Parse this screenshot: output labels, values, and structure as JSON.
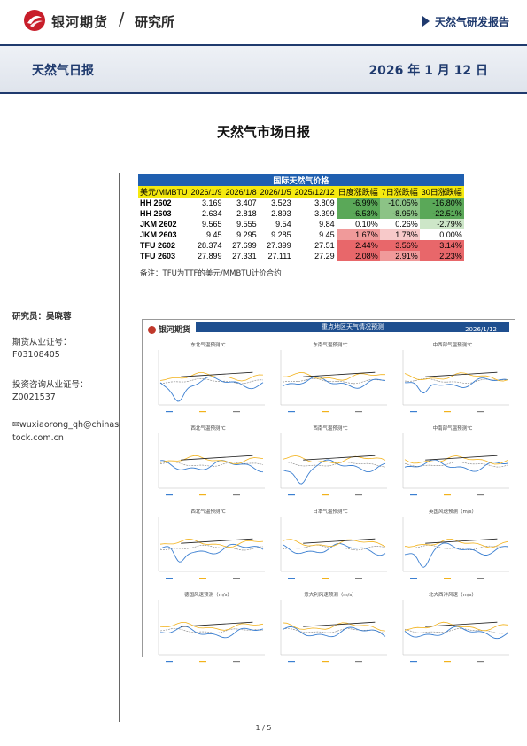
{
  "header": {
    "company": "银河期货",
    "separator": "/",
    "division": "研究所",
    "report_type": "天然气研发报告"
  },
  "banner": {
    "title": "天然气日报",
    "date": "2026 年 1 月 12 日"
  },
  "document_title": "天然气市场日报",
  "sidebar": {
    "analyst_label": "研究员：吴晓蓉",
    "cert_label": "期货从业证号：",
    "cert_number": "F03108405",
    "advisor_label": "投资咨询从业证号：",
    "advisor_number": "Z0021537",
    "email_line1": "wuxiaorong_qh@chinas",
    "email_line2": "tock.com.cn"
  },
  "price_table": {
    "caption": "国际天然气价格",
    "headers": [
      "美元/MMBTU",
      "2026/1/9",
      "2026/1/8",
      "2026/1/5",
      "2025/12/12",
      "日度涨跌幅",
      "7日涨跌幅",
      "30日涨跌幅"
    ],
    "rows": [
      {
        "name": "HH 2602",
        "v1": "3.169",
        "v2": "3.407",
        "v3": "3.523",
        "v4": "3.809",
        "d": "-6.99%",
        "w": "-10.05%",
        "m": "-16.80%",
        "dc": "green-dark",
        "wc": "green-mid",
        "mc": "green-dark"
      },
      {
        "name": "HH 2603",
        "v1": "2.634",
        "v2": "2.818",
        "v3": "2.893",
        "v4": "3.399",
        "d": "-6.53%",
        "w": "-8.95%",
        "m": "-22.51%",
        "dc": "green-dark",
        "wc": "green-mid",
        "mc": "green-dark"
      },
      {
        "name": "JKM 2602",
        "v1": "9.565",
        "v2": "9.555",
        "v3": "9.54",
        "v4": "9.84",
        "d": "0.10%",
        "w": "0.26%",
        "m": "-2.79%",
        "dc": "",
        "wc": "",
        "mc": "green-light"
      },
      {
        "name": "JKM 2603",
        "v1": "9.45",
        "v2": "9.295",
        "v3": "9.285",
        "v4": "9.45",
        "d": "1.67%",
        "w": "1.78%",
        "m": "0.00%",
        "dc": "red-mid",
        "wc": "red-light",
        "mc": ""
      },
      {
        "name": "TFU 2602",
        "v1": "28.374",
        "v2": "27.699",
        "v3": "27.399",
        "v4": "27.51",
        "d": "2.44%",
        "w": "3.56%",
        "m": "3.14%",
        "dc": "red-dark",
        "wc": "red-dark",
        "mc": "red-dark"
      },
      {
        "name": "TFU 2603",
        "v1": "27.899",
        "v2": "27.331",
        "v3": "27.111",
        "v4": "27.29",
        "d": "2.08%",
        "w": "2.91%",
        "m": "2.23%",
        "dc": "red-dark",
        "wc": "red-mid",
        "mc": "red-dark"
      }
    ],
    "note": "备注：TFU为TTF的美元/MMBTU计价合约"
  },
  "weather_chart": {
    "logo": "银河期货",
    "title": "重点地区天气情况预测",
    "date": "2026/1/12",
    "panels": [
      "东北气温预测℃",
      "东南气温预测℃",
      "中西部气温预测℃",
      "西北气温预测℃",
      "西南气温预测℃",
      "中南部气温预测℃",
      "西北气温预测℃",
      "日本气温预测℃",
      "英国风速预测（m/s）",
      "德国风速预测（m/s）",
      "意大利风速预测（m/s）",
      "北大西洋风速（m/s）"
    ],
    "colors": {
      "forecast": "#3b7fd1",
      "past": "#f2b21b",
      "mean": "#7f7f7f",
      "trend": "#1f1f1f"
    }
  },
  "footer": {
    "page": "1 / 5"
  }
}
